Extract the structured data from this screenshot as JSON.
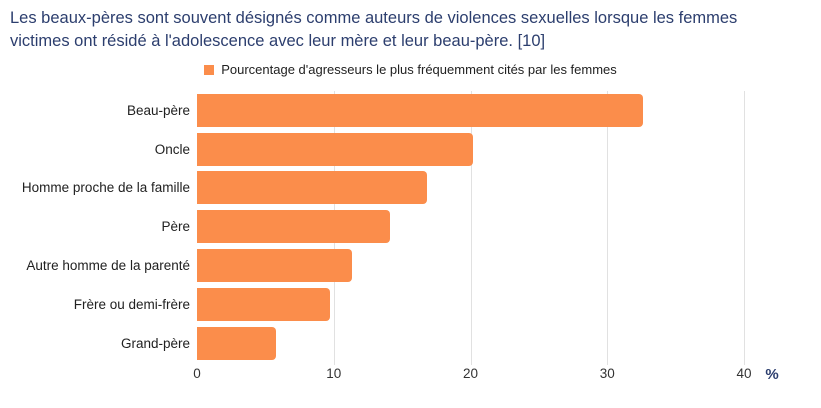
{
  "title": {
    "line1": "Les beaux-pères sont souvent désignés comme auteurs de violences sexuelles lorsque les femmes",
    "line2": "victimes ont résidé à l'adolescence avec leur mère et leur beau-père. [10]",
    "full": "Les beaux-pères sont souvent désignés comme auteurs de violences sexuelles lorsque les femmes victimes ont résidé à l'adolescence avec leur mère et leur beau-père. [10]"
  },
  "legend": {
    "label": "Pourcentage d'agresseurs le plus fréquemment cités par les femmes",
    "marker_color": "#FB8D4B"
  },
  "chart_data": {
    "type": "bar",
    "orientation": "horizontal",
    "title": "Les beaux-pères sont souvent désignés comme auteurs de violences sexuelles lorsque les femmes victimes ont résidé à l'adolescence avec leur mère et leur beau-père. [10]",
    "series_name": "Pourcentage d'agresseurs le plus fréquemment cités par les femmes",
    "categories": [
      "Beau-père",
      "Oncle",
      "Homme proche de la famille",
      "Père",
      "Autre homme de la parenté",
      "Frère ou demi-frère",
      "Grand-père"
    ],
    "values": [
      32.6,
      20.2,
      16.8,
      14.1,
      11.3,
      9.7,
      5.8
    ],
    "x_ticks": [
      0,
      10,
      20,
      30,
      40
    ],
    "xlim": [
      0,
      45.6
    ],
    "xlabel": "%",
    "ylabel": "",
    "grid": true,
    "legend_position": "top",
    "bar_color": "#FB8D4B"
  },
  "colors": {
    "bar": "#FB8D4B",
    "title_text": "#2C3E6E",
    "grid": "#E1E1E1",
    "tick_text": "#333333",
    "label_text": "#212121"
  }
}
